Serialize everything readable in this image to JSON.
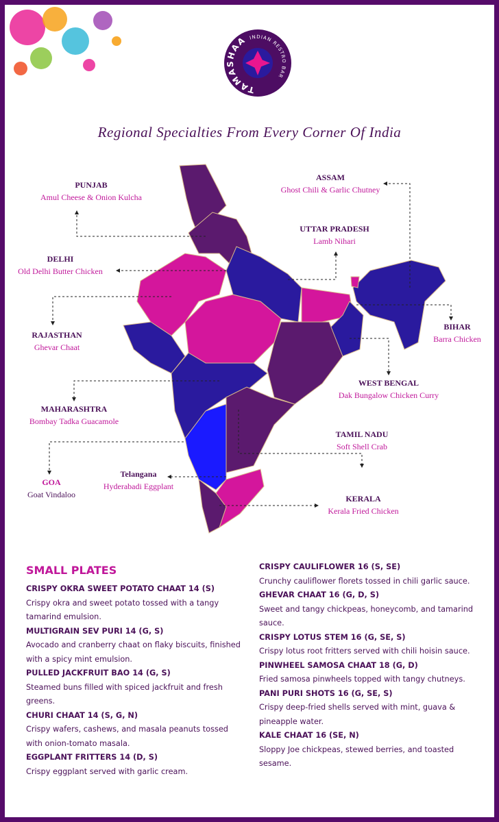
{
  "logo": {
    "name": "TAMASHAA",
    "tagline": "INDIAN RESTRO BAR"
  },
  "title": "Regional Specialties From Every Corner Of India",
  "regions": [
    {
      "name": "PUNJAB",
      "dish": "Amul Cheese & Onion Kulcha"
    },
    {
      "name": "ASSAM",
      "dish": "Ghost Chili & Garlic Chutney"
    },
    {
      "name": "UTTAR PRADESH",
      "dish": "Lamb Nihari"
    },
    {
      "name": "DELHI",
      "dish": "Old Delhi Butter Chicken"
    },
    {
      "name": "RAJASTHAN",
      "dish": "Ghevar Chaat"
    },
    {
      "name": "BIHAR",
      "dish": "Barra Chicken"
    },
    {
      "name": "WEST BENGAL",
      "dish": "Dak Bungalow Chicken Curry"
    },
    {
      "name": "MAHARASHTRA",
      "dish": "Bombay Tadka Guacamole"
    },
    {
      "name": "TAMIL NADU",
      "dish": "Soft Shell Crab"
    },
    {
      "name": "GOA",
      "dish": "Goat Vindaloo"
    },
    {
      "name": "Telangana",
      "dish": "Hyderabadi Eggplant"
    },
    {
      "name": "KERALA",
      "dish": "Kerala Fried Chicken"
    }
  ],
  "menu": {
    "heading": "SMALL PLATES",
    "columns": [
      [
        {
          "name": "CRISPY OKRA SWEET POTATO CHAAT 14 (S)",
          "description": "Crispy okra and sweet potato tossed with a tangy tamarind emulsion."
        },
        {
          "name": "MULTIGRAIN SEV PURI 14 (G, S)",
          "description": "Avocado and cranberry chaat on flaky biscuits, finished with a spicy mint emulsion."
        },
        {
          "name": "PULLED JACKFRUIT BAO 14 (G, S)",
          "description": "Steamed buns filled with spiced jackfruit and fresh greens."
        },
        {
          "name": "CHURI CHAAT 14 (S, G, N)",
          "description": "Crispy wafers, cashews, and masala peanuts tossed with onion-tomato masala."
        },
        {
          "name": "EGGPLANT FRITTERS 14 (D, S)",
          "description": "Crispy eggplant served with garlic cream."
        }
      ],
      [
        {
          "name": "CRISPY CAULIFLOWER 16 (S, SE)",
          "description": "Crunchy cauliflower florets tossed in chili garlic sauce."
        },
        {
          "name": "GHEVAR CHAAT 16 (G, D, S)",
          "description": "Sweet and tangy chickpeas, honeycomb, and tamarind sauce."
        },
        {
          "name": "CRISPY LOTUS STEM 16 (G, SE, S)",
          "description": "Crispy lotus root fritters served with chili hoisin sauce."
        },
        {
          "name": "PINWHEEL SAMOSA CHAAT 18 (G, D)",
          "description": "Fried samosa pinwheels topped with tangy chutneys."
        },
        {
          "name": "PANI PURI SHOTS 16 (G, SE, S)",
          "description": "Crispy deep-fried shells served with mint, guava & pineapple water."
        },
        {
          "name": "KALE CHAAT 16 (SE, N)",
          "description": "Sloppy Joe chickpeas, stewed berries, and toasted sesame."
        }
      ]
    ]
  }
}
